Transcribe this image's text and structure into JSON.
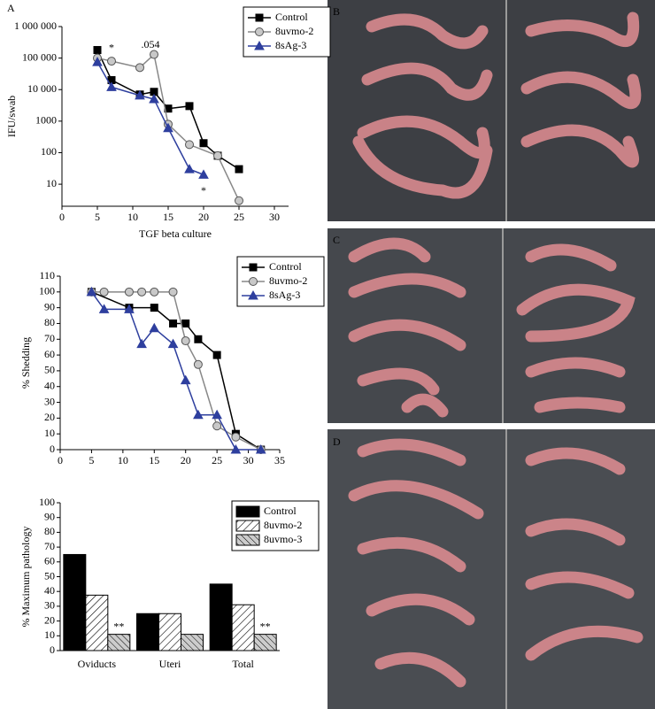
{
  "panel_labels": [
    "A",
    "B",
    "C",
    "D"
  ],
  "chart_data": [
    {
      "type": "line",
      "log_y": true,
      "ylabel": "IFU/swab",
      "xlabel": "TGF beta culture",
      "xlim": [
        0,
        32
      ],
      "xticks": [
        0,
        5,
        10,
        15,
        20,
        25,
        30
      ],
      "ylim": [
        2,
        1000000
      ],
      "yticks": [
        10,
        100,
        1000,
        {
          "value": 10000,
          "label": "10 000"
        },
        {
          "value": 100000,
          "label": "100 000"
        },
        {
          "value": 1000000,
          "label": "1 000 000"
        }
      ],
      "legend": "top-right",
      "series": [
        {
          "name": "Control",
          "color": "#000000",
          "marker": "square",
          "x": [
            5,
            7,
            11,
            13,
            15,
            18,
            20,
            22,
            25
          ],
          "values": [
            180000,
            20000,
            7000,
            8500,
            2500,
            3000,
            200,
            80,
            30
          ]
        },
        {
          "name": "8uvmo-2",
          "color": "#888888",
          "marker": "circle",
          "x": [
            5,
            7,
            11,
            13,
            15,
            18,
            22,
            25
          ],
          "values": [
            100000,
            80000,
            50000,
            130000,
            800,
            180,
            80,
            3
          ]
        },
        {
          "name": "8sAg-3",
          "color": "#2e3f9e",
          "marker": "triangle",
          "x": [
            5,
            7,
            11,
            13,
            15,
            18,
            20
          ],
          "values": [
            75000,
            12000,
            6500,
            5000,
            600,
            30,
            20
          ]
        }
      ],
      "annotations": [
        "*",
        ".054",
        "*"
      ]
    },
    {
      "type": "line",
      "ylabel": "% Shedding",
      "xlim": [
        0,
        35
      ],
      "xticks": [
        0,
        5,
        10,
        15,
        20,
        25,
        30,
        35
      ],
      "ylim": [
        0,
        110
      ],
      "yticks": [
        0,
        10,
        20,
        30,
        40,
        50,
        60,
        70,
        80,
        90,
        100,
        110
      ],
      "legend": "top-right",
      "series": [
        {
          "name": "Control",
          "color": "#000000",
          "marker": "square",
          "x": [
            5,
            11,
            15,
            18,
            20,
            22,
            25,
            28,
            32
          ],
          "values": [
            100,
            90,
            90,
            80,
            80,
            70,
            60,
            10,
            0
          ]
        },
        {
          "name": "8uvmo-2",
          "color": "#888888",
          "marker": "circle",
          "x": [
            5,
            7,
            11,
            13,
            15,
            18,
            20,
            22,
            25,
            28,
            32
          ],
          "values": [
            100,
            100,
            100,
            100,
            100,
            100,
            69,
            54,
            15,
            8,
            0
          ]
        },
        {
          "name": "8sAg-3",
          "color": "#2e3f9e",
          "marker": "triangle",
          "x": [
            5,
            7,
            11,
            13,
            15,
            18,
            20,
            22,
            25,
            28,
            32
          ],
          "values": [
            100,
            89,
            89,
            67,
            77,
            67,
            44,
            22,
            22,
            0,
            0
          ]
        }
      ]
    },
    {
      "type": "bar",
      "ylabel": "% Maximum pathology",
      "categories": [
        "Oviducts",
        "Uteri",
        "Total"
      ],
      "ylim": [
        0,
        100
      ],
      "yticks": [
        0,
        10,
        20,
        30,
        40,
        50,
        60,
        70,
        80,
        90,
        100
      ],
      "legend": "top-right",
      "series": [
        {
          "name": "Control",
          "color": "#000000",
          "pattern": "solid",
          "values": [
            65,
            25,
            45
          ]
        },
        {
          "name": "8uvmo-2",
          "color": "#000000",
          "pattern": "diagonal",
          "values": [
            37.5,
            25,
            31
          ]
        },
        {
          "name": "8uvmo-3",
          "color": "#000000",
          "pattern": "crosshatch",
          "values": [
            11,
            11,
            11
          ]
        }
      ],
      "annotations": [
        "**",
        "**"
      ]
    }
  ]
}
